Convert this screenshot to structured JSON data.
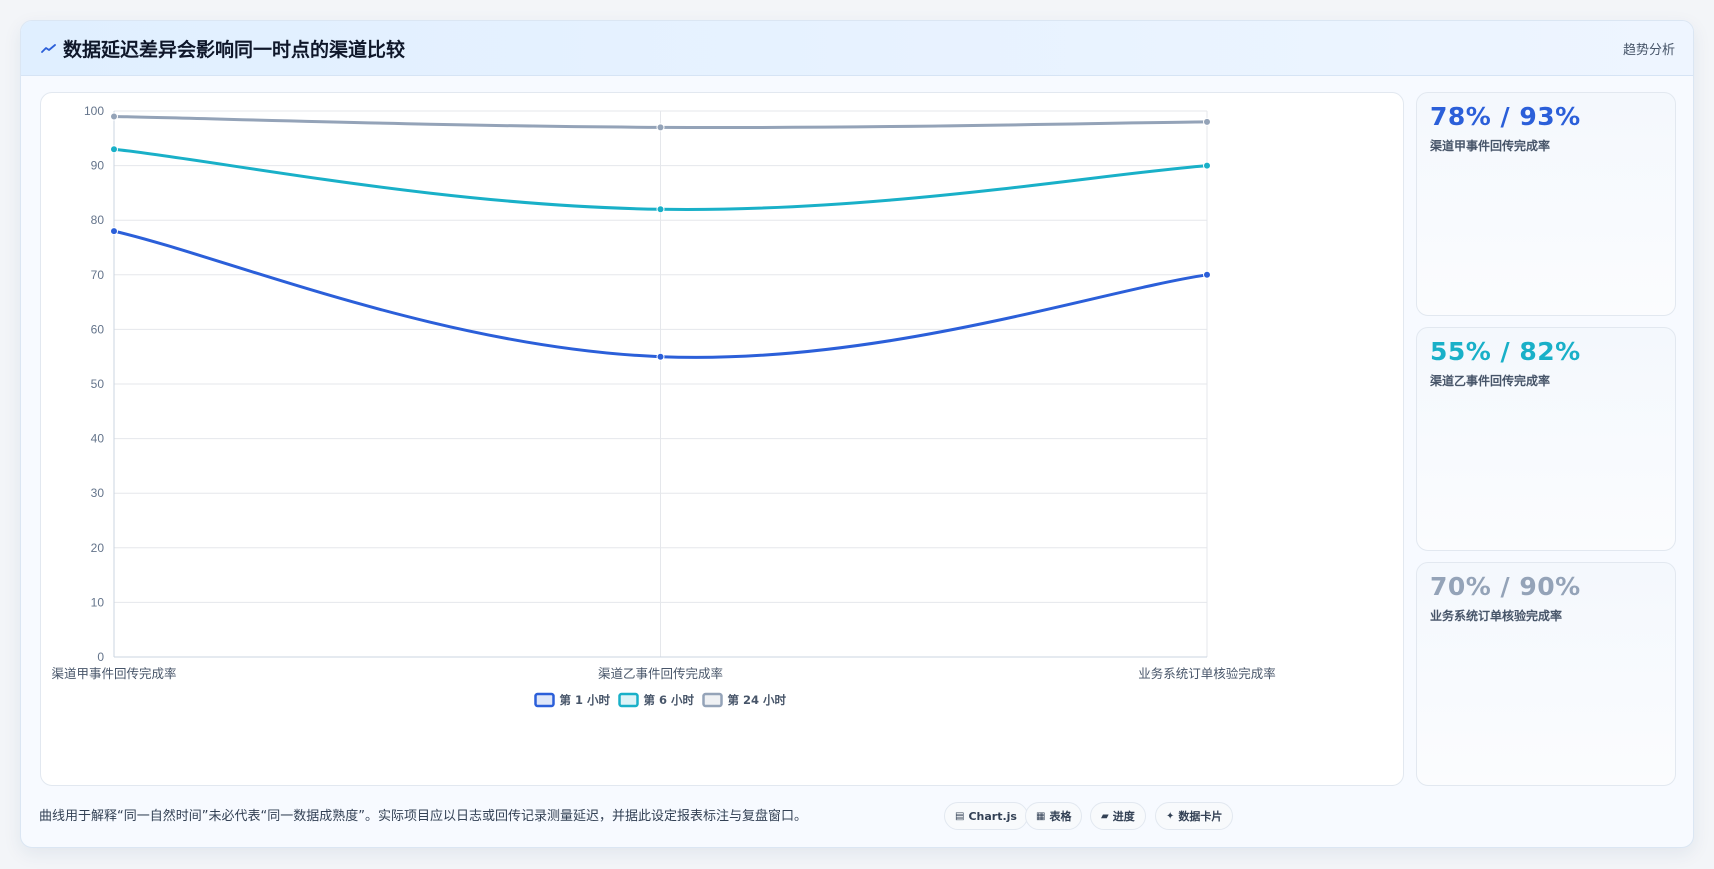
{
  "header": {
    "title": "数据延迟差异会影响同一时点的渠道比较",
    "trend_link": "趋势分析"
  },
  "chart_data": {
    "type": "line",
    "categories": [
      "渠道甲事件回传完成率",
      "渠道乙事件回传完成率",
      "业务系统订单核验完成率"
    ],
    "series": [
      {
        "name": "第 1 小时",
        "values": [
          78,
          55,
          70
        ],
        "color": "#2b5fd9"
      },
      {
        "name": "第 6 小时",
        "values": [
          93,
          82,
          90
        ],
        "color": "#19b0c8"
      },
      {
        "name": "第 24 小时",
        "values": [
          99,
          97,
          98
        ],
        "color": "#94a3b8"
      }
    ],
    "ylim": [
      0,
      100
    ],
    "yticks": [
      "0",
      "10",
      "20",
      "30",
      "40",
      "50",
      "60",
      "70",
      "80",
      "90",
      "100"
    ],
    "grid": true,
    "legend_position": "bottom"
  },
  "stats": [
    {
      "value": "78% / 93%",
      "label": "渠道甲事件回传完成率",
      "color": "#2b5fd9"
    },
    {
      "value": "55% / 82%",
      "label": "渠道乙事件回传完成率",
      "color": "#19b0c8"
    },
    {
      "value": "70% / 90%",
      "label": "业务系统订单核验完成率",
      "color": "#94a3b8"
    }
  ],
  "footer": {
    "note": "曲线用于解释“同一自然时间”未必代表“同一数据成熟度”。实际项目应以日志或回传记录测量延迟，并据此设定报表标注与复盘窗口。",
    "pills": [
      {
        "icon": "▤",
        "label": "Chart.js"
      },
      {
        "icon": "▦",
        "label": "表格"
      },
      {
        "icon": "▰",
        "label": "进度"
      },
      {
        "icon": "✦",
        "label": "数据卡片"
      }
    ]
  }
}
